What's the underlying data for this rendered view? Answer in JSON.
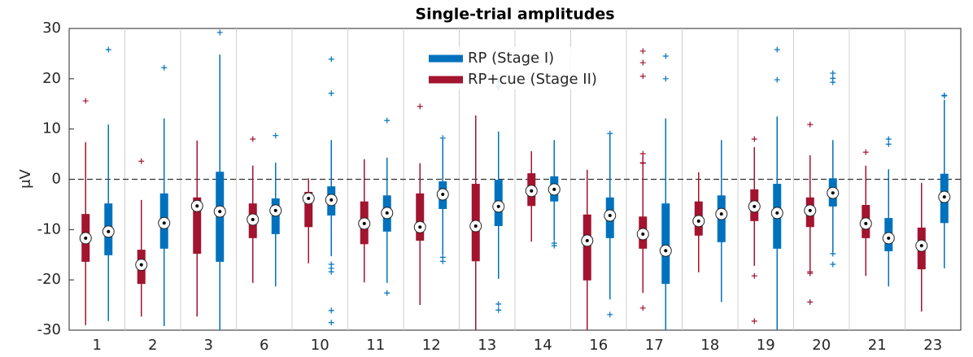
{
  "chart_data": {
    "type": "box",
    "title": "Single-trial amplitudes",
    "ylabel": "μV",
    "categories": [
      "1",
      "2",
      "3",
      "6",
      "10",
      "11",
      "12",
      "13",
      "14",
      "16",
      "17",
      "18",
      "19",
      "20",
      "21",
      "23"
    ],
    "ylim": [
      -30,
      30
    ],
    "yticks": [
      -30,
      -20,
      -10,
      0,
      10,
      20,
      30
    ],
    "reference_line": 0,
    "legend": "top-center",
    "series": [
      {
        "name": "RP (Stage I)",
        "color": "#0072bd",
        "whisker_high": [
          10.9,
          12.1,
          24.8,
          3.3,
          7.8,
          4.3,
          8,
          9.5,
          7.8,
          9.1,
          12.1,
          7.8,
          12.5,
          7.8,
          2,
          15.8
        ],
        "q3": [
          -4.8,
          -2.8,
          1.5,
          -3.8,
          -1.4,
          -3.2,
          -0.4,
          -0.1,
          0.6,
          -3.6,
          -4.8,
          -3.2,
          -0.9,
          0.2,
          -7.7,
          1.1
        ],
        "median": [
          -10.4,
          -8.7,
          -6.4,
          -6.2,
          -4.1,
          -6.7,
          -3,
          -5.4,
          -2,
          -7.2,
          -14.2,
          -6.9,
          -6.7,
          -2.7,
          -11.7,
          -3.5
        ],
        "q1": [
          -15.1,
          -13.8,
          -16.4,
          -10.9,
          -7.2,
          -10.4,
          -5.9,
          -9.3,
          -4.4,
          -11.7,
          -20.8,
          -12.5,
          -13.8,
          -5.4,
          -14.3,
          -8.7
        ],
        "whisker_low": [
          -28.2,
          -29.2,
          -30,
          -21.3,
          -15.3,
          -20.6,
          -15,
          -19.8,
          -12.1,
          -23.9,
          -30,
          -24.4,
          -30,
          -14.5,
          -21.3,
          -17.7
        ],
        "outliers": [
          [
            25.8
          ],
          [
            22.2
          ],
          [
            29.2
          ],
          [
            8.7
          ],
          [
            23.9,
            17.1,
            -16.9,
            -17.7,
            -18.4,
            -26.1,
            -28.5
          ],
          [
            11.7,
            -22.6
          ],
          [
            8.2,
            -15.5,
            -16.3
          ],
          [
            19.5,
            18.4,
            -24.8,
            -26
          ],
          [
            -12.7,
            -13.2
          ],
          [
            9.1,
            -26.9
          ],
          [
            24.5,
            20
          ],
          [],
          [
            25.8,
            19.8
          ],
          [
            21.1,
            20.1,
            19.3,
            -14.8,
            -16.9
          ],
          [
            8,
            7
          ],
          [
            16.7,
            16.6
          ]
        ]
      },
      {
        "name": "RP+cue (Stage II)",
        "color": "#a2142f",
        "whisker_high": [
          7.4,
          -4.1,
          7.7,
          2.7,
          0.2,
          4,
          3.2,
          12.7,
          5.6,
          1.9,
          4.8,
          1.4,
          6.4,
          4.8,
          2.7,
          -0.7
        ],
        "q3": [
          -6.9,
          -14,
          -3.6,
          -4.8,
          -2.5,
          -4.4,
          -2.8,
          -0.9,
          1.2,
          -7,
          -7.4,
          -4.4,
          -2,
          -3.6,
          -5.1,
          -9.6
        ],
        "median": [
          -11.7,
          -17,
          -5.3,
          -8,
          -3.8,
          -8.8,
          -9.5,
          -9.3,
          -2.3,
          -12.2,
          -10.9,
          -8.3,
          -5.4,
          -6.2,
          -8.8,
          -13.2
        ],
        "q1": [
          -16.4,
          -20.8,
          -14.8,
          -11.7,
          -9.5,
          -12.9,
          -12.2,
          -16.3,
          -5.3,
          -20.1,
          -13.8,
          -11.2,
          -8.3,
          -9.5,
          -11.7,
          -17.9
        ],
        "whisker_low": [
          -29,
          -27.3,
          -27.3,
          -20.6,
          -16.7,
          -20.5,
          -25,
          -30,
          -12.4,
          -30,
          -22.6,
          -18.5,
          -17.2,
          -18.2,
          -19.2,
          -26.3
        ],
        "outliers": [
          [
            15.6
          ],
          [
            3.6
          ],
          [],
          [
            8
          ],
          [],
          [],
          [
            14.5
          ],
          [],
          [],
          [],
          [
            25.5,
            23.2,
            20.5,
            5.1,
            3.3,
            3.2,
            -25.6
          ],
          [],
          [
            8,
            -19.2,
            -28.2
          ],
          [
            10.9,
            -18.4,
            -18.7,
            -24.4
          ],
          [
            5.4
          ],
          []
        ]
      }
    ]
  }
}
